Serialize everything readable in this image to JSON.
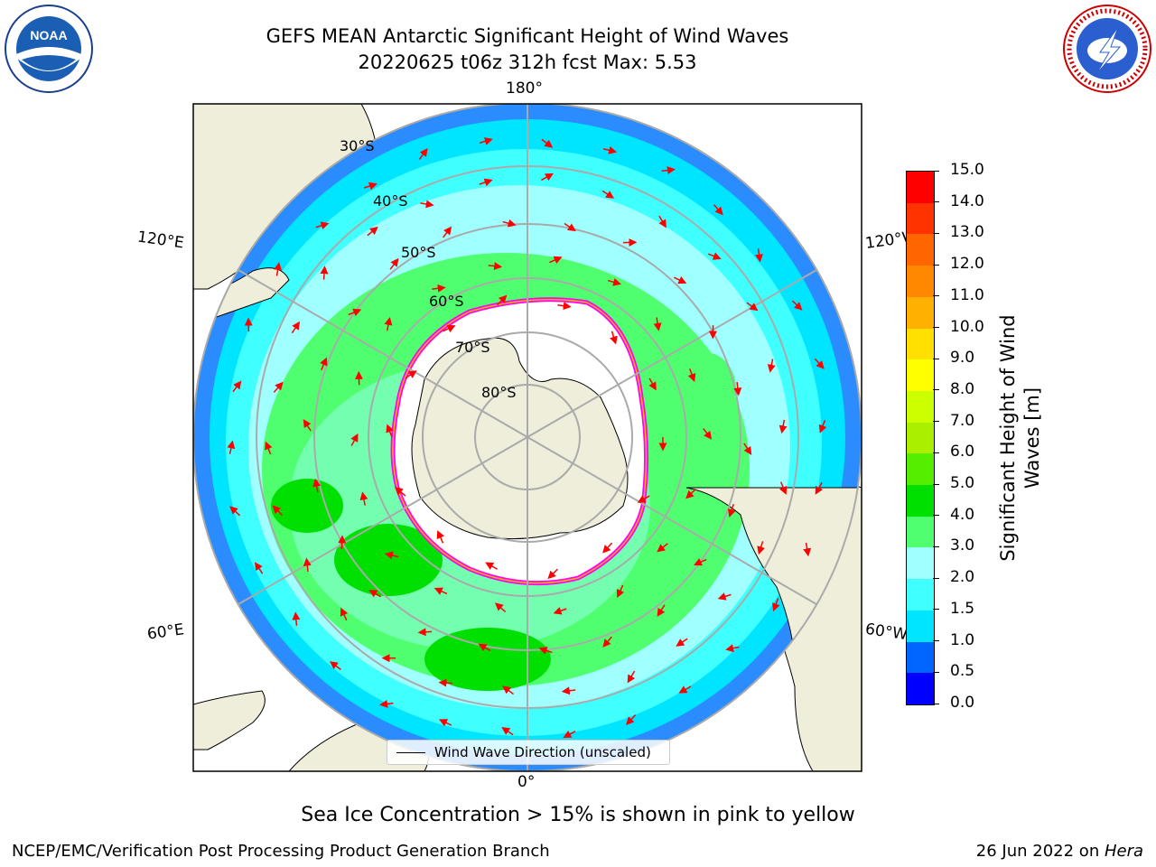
{
  "title_line1": "GEFS MEAN Antarctic Significant Height of Wind Waves",
  "title_line2": "20220625 t06z 312h fcst   Max: 5.53",
  "lon_labels": {
    "top": "180°",
    "bottom": "0°",
    "upper_left": "120°E",
    "upper_right": "120°W",
    "lower_left": "60°E",
    "lower_right": "60°W"
  },
  "lat_labels": [
    "30°S",
    "40°S",
    "50°S",
    "60°S",
    "70°S",
    "80°S"
  ],
  "legend_label": "Wind Wave Direction (unscaled)",
  "colorbar": {
    "label": "Significant Height of Wind Waves [m]",
    "ticks": [
      "0.0",
      "0.5",
      "1.0",
      "1.5",
      "2.0",
      "3.0",
      "4.0",
      "5.0",
      "6.0",
      "7.0",
      "8.0",
      "9.0",
      "10.0",
      "11.0",
      "12.0",
      "13.0",
      "14.0",
      "15.0"
    ],
    "colors": [
      "#0000ff",
      "#0066ff",
      "#00e5ff",
      "#40ffff",
      "#a0ffff",
      "#50ff70",
      "#00e000",
      "#55ee00",
      "#aaee00",
      "#ccff00",
      "#ffff00",
      "#ffe000",
      "#ffb000",
      "#ff8800",
      "#ff6600",
      "#ff3300",
      "#ff0000"
    ]
  },
  "caption": "Sea Ice Concentration > 15% is shown in pink to yellow",
  "footer_left": "NCEP/EMC/Verification Post Processing Product Generation Branch",
  "footer_right_date": "26 Jun 2022 on ",
  "footer_right_host": "Hera",
  "logos": {
    "left": "NOAA",
    "right": "NATIONAL WEATHER SERVICE"
  },
  "colors": {
    "land": "#efeedb",
    "arrow": "#ff0000",
    "grid": "#aaaaaa",
    "ice_edge": "#ff00ff"
  }
}
